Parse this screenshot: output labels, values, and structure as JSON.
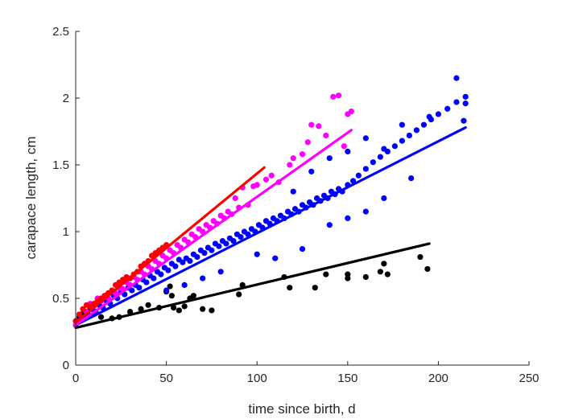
{
  "chart_data": {
    "type": "scatter",
    "title": "",
    "xlabel": "time since birth, d",
    "ylabel": "carapace length, cm",
    "xlim": [
      0,
      250
    ],
    "ylim": [
      0,
      2.5
    ],
    "xticks": [
      "0",
      "50",
      "100",
      "150",
      "200",
      "250"
    ],
    "yticks": [
      "0",
      "0.5",
      "1",
      "1.5",
      "2",
      "2.5"
    ],
    "grid": false,
    "legend": "none",
    "series": [
      {
        "color": "#000000",
        "points": [
          [
            1,
            0.33
          ],
          [
            2,
            0.36
          ],
          [
            3,
            0.38
          ],
          [
            4,
            0.35
          ],
          [
            5,
            0.4
          ],
          [
            6,
            0.37
          ],
          [
            8,
            0.42
          ],
          [
            10,
            0.38
          ],
          [
            14,
            0.36
          ],
          [
            20,
            0.35
          ],
          [
            24,
            0.36
          ],
          [
            30,
            0.4
          ],
          [
            36,
            0.42
          ],
          [
            40,
            0.45
          ],
          [
            46,
            0.43
          ],
          [
            50,
            0.55
          ],
          [
            52,
            0.59
          ],
          [
            53,
            0.52
          ],
          [
            54,
            0.43
          ],
          [
            57,
            0.41
          ],
          [
            60,
            0.44
          ],
          [
            63,
            0.5
          ],
          [
            65,
            0.52
          ],
          [
            70,
            0.42
          ],
          [
            75,
            0.41
          ],
          [
            90,
            0.53
          ],
          [
            92,
            0.6
          ],
          [
            115,
            0.66
          ],
          [
            118,
            0.58
          ],
          [
            132,
            0.58
          ],
          [
            138,
            0.68
          ],
          [
            150,
            0.68
          ],
          [
            150,
            0.65
          ],
          [
            160,
            0.66
          ],
          [
            168,
            0.7
          ],
          [
            170,
            0.76
          ],
          [
            172,
            0.68
          ],
          [
            190,
            0.81
          ],
          [
            194,
            0.72
          ]
        ],
        "fit": [
          [
            0,
            0.28
          ],
          [
            195,
            0.91
          ]
        ]
      },
      {
        "color": "#0000ff",
        "points": [
          [
            1,
            0.32
          ],
          [
            3,
            0.36
          ],
          [
            5,
            0.35
          ],
          [
            7,
            0.38
          ],
          [
            9,
            0.42
          ],
          [
            11,
            0.4
          ],
          [
            13,
            0.45
          ],
          [
            15,
            0.43
          ],
          [
            17,
            0.48
          ],
          [
            19,
            0.46
          ],
          [
            21,
            0.52
          ],
          [
            23,
            0.5
          ],
          [
            25,
            0.55
          ],
          [
            27,
            0.53
          ],
          [
            29,
            0.58
          ],
          [
            31,
            0.56
          ],
          [
            33,
            0.6
          ],
          [
            35,
            0.58
          ],
          [
            37,
            0.64
          ],
          [
            39,
            0.62
          ],
          [
            41,
            0.67
          ],
          [
            43,
            0.65
          ],
          [
            45,
            0.7
          ],
          [
            47,
            0.68
          ],
          [
            49,
            0.73
          ],
          [
            51,
            0.71
          ],
          [
            53,
            0.76
          ],
          [
            55,
            0.74
          ],
          [
            57,
            0.79
          ],
          [
            59,
            0.77
          ],
          [
            61,
            0.8
          ],
          [
            63,
            0.78
          ],
          [
            65,
            0.83
          ],
          [
            67,
            0.81
          ],
          [
            69,
            0.86
          ],
          [
            71,
            0.84
          ],
          [
            73,
            0.88
          ],
          [
            75,
            0.86
          ],
          [
            77,
            0.91
          ],
          [
            79,
            0.89
          ],
          [
            81,
            0.93
          ],
          [
            83,
            0.91
          ],
          [
            85,
            0.95
          ],
          [
            87,
            0.93
          ],
          [
            89,
            0.98
          ],
          [
            91,
            0.96
          ],
          [
            93,
            1.0
          ],
          [
            95,
            0.98
          ],
          [
            97,
            1.02
          ],
          [
            99,
            1.0
          ],
          [
            101,
            1.05
          ],
          [
            103,
            1.03
          ],
          [
            105,
            1.08
          ],
          [
            107,
            1.06
          ],
          [
            109,
            1.1
          ],
          [
            111,
            1.08
          ],
          [
            113,
            1.12
          ],
          [
            115,
            1.1
          ],
          [
            117,
            1.15
          ],
          [
            119,
            1.13
          ],
          [
            121,
            1.17
          ],
          [
            123,
            1.15
          ],
          [
            125,
            1.2
          ],
          [
            127,
            1.18
          ],
          [
            129,
            1.22
          ],
          [
            131,
            1.2
          ],
          [
            133,
            1.25
          ],
          [
            135,
            1.23
          ],
          [
            137,
            1.27
          ],
          [
            139,
            1.25
          ],
          [
            141,
            1.3
          ],
          [
            143,
            1.28
          ],
          [
            145,
            1.32
          ],
          [
            147,
            1.3
          ],
          [
            150,
            1.35
          ],
          [
            153,
            1.38
          ],
          [
            156,
            1.42
          ],
          [
            160,
            1.47
          ],
          [
            164,
            1.52
          ],
          [
            168,
            1.56
          ],
          [
            172,
            1.6
          ],
          [
            176,
            1.64
          ],
          [
            180,
            1.68
          ],
          [
            184,
            1.72
          ],
          [
            188,
            1.76
          ],
          [
            192,
            1.8
          ],
          [
            196,
            1.84
          ],
          [
            200,
            1.88
          ],
          [
            205,
            1.92
          ],
          [
            210,
            1.97
          ],
          [
            100,
            0.83
          ],
          [
            110,
            0.8
          ],
          [
            125,
            0.87
          ],
          [
            140,
            1.05
          ],
          [
            150,
            1.1
          ],
          [
            160,
            1.15
          ],
          [
            170,
            1.25
          ],
          [
            185,
            1.4
          ],
          [
            60,
            0.6
          ],
          [
            70,
            0.65
          ],
          [
            80,
            0.7
          ],
          [
            50,
            0.56
          ],
          [
            120,
            1.3
          ],
          [
            130,
            1.45
          ],
          [
            140,
            1.55
          ],
          [
            150,
            1.6
          ],
          [
            160,
            1.7
          ],
          [
            170,
            1.62
          ],
          [
            180,
            1.8
          ],
          [
            195,
            1.86
          ],
          [
            210,
            2.15
          ],
          [
            214,
            1.83
          ],
          [
            215,
            1.96
          ],
          [
            215,
            2.01
          ]
        ],
        "fit": [
          [
            0,
            0.3
          ],
          [
            215,
            1.78
          ]
        ]
      },
      {
        "color": "#ff00ff",
        "points": [
          [
            0,
            0.3
          ],
          [
            2,
            0.38
          ],
          [
            4,
            0.42
          ],
          [
            6,
            0.4
          ],
          [
            8,
            0.46
          ],
          [
            10,
            0.44
          ],
          [
            12,
            0.5
          ],
          [
            14,
            0.48
          ],
          [
            16,
            0.52
          ],
          [
            18,
            0.5
          ],
          [
            20,
            0.56
          ],
          [
            22,
            0.54
          ],
          [
            24,
            0.58
          ],
          [
            26,
            0.57
          ],
          [
            28,
            0.62
          ],
          [
            30,
            0.6
          ],
          [
            32,
            0.66
          ],
          [
            34,
            0.64
          ],
          [
            36,
            0.7
          ],
          [
            38,
            0.68
          ],
          [
            40,
            0.74
          ],
          [
            42,
            0.72
          ],
          [
            44,
            0.78
          ],
          [
            46,
            0.76
          ],
          [
            48,
            0.82
          ],
          [
            50,
            0.8
          ],
          [
            52,
            0.86
          ],
          [
            54,
            0.84
          ],
          [
            56,
            0.9
          ],
          [
            58,
            0.88
          ],
          [
            60,
            0.94
          ],
          [
            62,
            0.92
          ],
          [
            64,
            0.98
          ],
          [
            66,
            0.96
          ],
          [
            68,
            1.02
          ],
          [
            70,
            1.0
          ],
          [
            72,
            1.05
          ],
          [
            74,
            1.03
          ],
          [
            76,
            1.08
          ],
          [
            78,
            1.06
          ],
          [
            80,
            1.12
          ],
          [
            82,
            1.1
          ],
          [
            84,
            1.15
          ],
          [
            86,
            1.13
          ],
          [
            88,
            1.25
          ],
          [
            90,
            1.18
          ],
          [
            92,
            1.33
          ],
          [
            95,
            1.2
          ],
          [
            98,
            1.34
          ],
          [
            100,
            1.35
          ],
          [
            105,
            1.39
          ],
          [
            108,
            1.42
          ],
          [
            112,
            1.37
          ],
          [
            118,
            1.5
          ],
          [
            120,
            1.55
          ],
          [
            125,
            1.58
          ],
          [
            128,
            1.67
          ],
          [
            130,
            1.8
          ],
          [
            134,
            1.79
          ],
          [
            138,
            1.72
          ],
          [
            142,
            2.01
          ],
          [
            145,
            2.02
          ],
          [
            148,
            1.64
          ],
          [
            150,
            1.88
          ],
          [
            152,
            1.9
          ]
        ],
        "fit": [
          [
            0,
            0.3
          ],
          [
            152,
            1.76
          ]
        ]
      },
      {
        "color": "#ff0000",
        "points": [
          [
            0,
            0.33
          ],
          [
            2,
            0.38
          ],
          [
            4,
            0.42
          ],
          [
            6,
            0.45
          ],
          [
            8,
            0.44
          ],
          [
            10,
            0.46
          ],
          [
            12,
            0.48
          ],
          [
            14,
            0.5
          ],
          [
            16,
            0.52
          ],
          [
            18,
            0.54
          ],
          [
            20,
            0.56
          ],
          [
            22,
            0.6
          ],
          [
            24,
            0.62
          ],
          [
            26,
            0.64
          ],
          [
            28,
            0.66
          ],
          [
            30,
            0.65
          ],
          [
            32,
            0.68
          ],
          [
            34,
            0.7
          ],
          [
            36,
            0.74
          ],
          [
            38,
            0.76
          ],
          [
            40,
            0.78
          ],
          [
            42,
            0.82
          ],
          [
            44,
            0.84
          ],
          [
            46,
            0.86
          ],
          [
            48,
            0.88
          ],
          [
            50,
            0.9
          ]
        ],
        "fit": [
          [
            0,
            0.32
          ],
          [
            104,
            1.48
          ]
        ]
      }
    ]
  }
}
